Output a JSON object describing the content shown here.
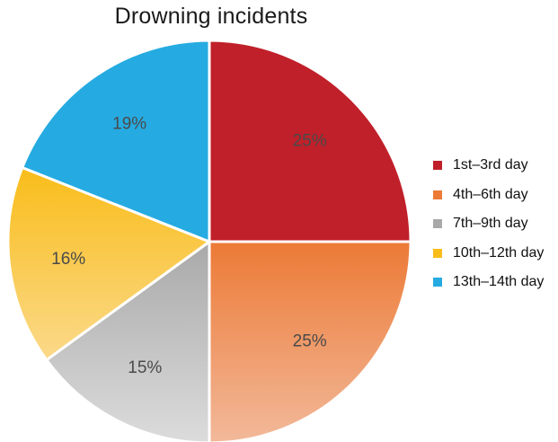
{
  "chart_data": {
    "type": "pie",
    "title": "Drowning incidents",
    "slices": [
      {
        "label": "1st–3rd day",
        "value": 25,
        "value_label": "25%",
        "color": "#c0202a",
        "color_light": "#c0202a"
      },
      {
        "label": "4th–6th day",
        "value": 25,
        "value_label": "25%",
        "color": "#ec7a36",
        "color_light": "#f2b99a"
      },
      {
        "label": "7th–9th day",
        "value": 15,
        "value_label": "15%",
        "color": "#a9a9a9",
        "color_light": "#dcdcdc"
      },
      {
        "label": "10th–12th day",
        "value": 16,
        "value_label": "16%",
        "color": "#f9bd1a",
        "color_light": "#fbd98a"
      },
      {
        "label": "13th–14th day",
        "value": 19,
        "value_label": "19%",
        "color": "#25abe1",
        "color_light": "#25abe1"
      }
    ],
    "start_angle_deg": 0,
    "direction": "clockwise",
    "legend_position": "right"
  }
}
